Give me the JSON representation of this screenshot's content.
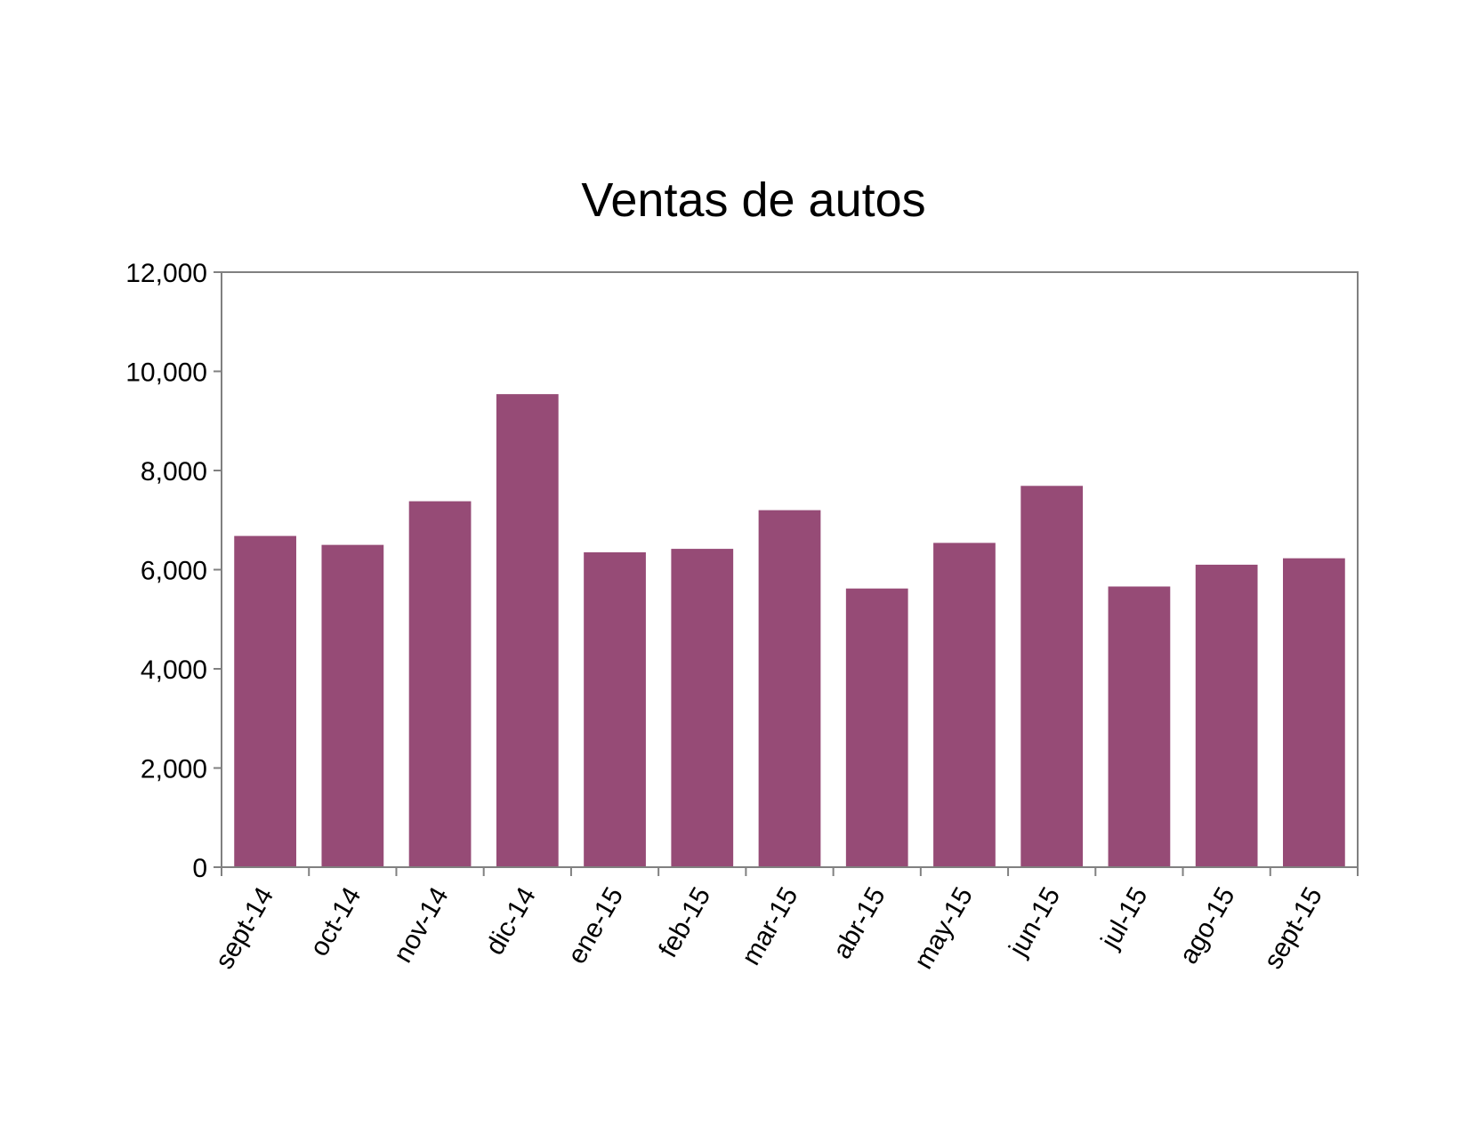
{
  "chart_data": {
    "type": "bar",
    "title": "Ventas de autos",
    "xlabel": "",
    "ylabel": "",
    "categories": [
      "sept-14",
      "oct-14",
      "nov-14",
      "dic-14",
      "ene-15",
      "feb-15",
      "mar-15",
      "abr-15",
      "may-15",
      "jun-15",
      "jul-15",
      "ago-15",
      "sept-15"
    ],
    "values": [
      6680,
      6500,
      7380,
      9540,
      6350,
      6420,
      7200,
      5620,
      6540,
      7690,
      5660,
      6100,
      6230
    ],
    "ylim": [
      0,
      12000
    ],
    "yticks": [
      0,
      2000,
      4000,
      6000,
      8000,
      10000,
      12000
    ],
    "ytick_labels": [
      "0",
      "2,000",
      "4,000",
      "6,000",
      "8,000",
      "10,000",
      "12,000"
    ],
    "grid": false,
    "legend": "none",
    "bar_color": "#964B76"
  }
}
